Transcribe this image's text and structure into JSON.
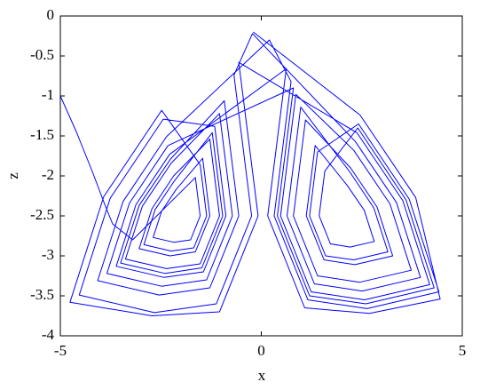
{
  "chart_data": {
    "type": "line",
    "xlabel": "x",
    "ylabel": "z",
    "color": "#0000ff",
    "xlim": [
      -5,
      5
    ],
    "xticks": [
      -5,
      0,
      5
    ],
    "ylim": [
      -4,
      0
    ],
    "yticks": [
      0,
      -0.5,
      -1,
      -1.5,
      -2,
      -2.5,
      -3,
      -3.5,
      -4
    ],
    "x": [
      -5,
      -4.6,
      -4.2,
      -3.9,
      -3.7,
      -3.2,
      -1.64,
      -1.52,
      -1.76,
      -2.18,
      -2.69,
      -2.48,
      -2.12,
      -1.46,
      -1.28,
      -1.64,
      -2.27,
      -3.04,
      -2.72,
      -2.18,
      -1.28,
      -1.04,
      -1.52,
      -2.36,
      -3.38,
      -2.96,
      -2.24,
      -1.04,
      -0.72,
      -1.36,
      -2.48,
      -3.84,
      -3.28,
      -2.32,
      0.8,
      0.4,
      1.2,
      2.6,
      4.3,
      3.6,
      2.4,
      1.58,
      1.44,
      1.72,
      2.21,
      2.81,
      2.56,
      2.14,
      1.34,
      1.12,
      1.56,
      2.33,
      3.27,
      2.88,
      2.22,
      1.1,
      0.8,
      1.4,
      2.45,
      3.73,
      3.2,
      2.3,
      0.86,
      0.48,
      1.24,
      2.57,
      4.19,
      3.52,
      2.38,
      -0.56,
      -0.08,
      -1.04,
      -2.72,
      -4.76,
      -3.92,
      -2.48,
      -1.52,
      -1.36,
      -1.68,
      -2.24,
      -2.92,
      -2.64,
      -2.16,
      -1.22,
      -0.96,
      -1.48,
      -2.39,
      -3.5,
      -3.04,
      -2.26,
      -0.92,
      -0.56,
      -1.28,
      -2.54,
      -4.07,
      -3.44,
      -2.36,
      0.2,
      0.74,
      0.32,
      1.16,
      2.63,
      4.42,
      3.68,
      2.42,
      1.4,
      1.2,
      1.6,
      2.3,
      3.15,
      2.8,
      2.2,
      0.98,
      0.64,
      1.32,
      2.51,
      3.96,
      3.36,
      2.34,
      -0.22,
      -0.68,
      -0.24,
      -1.12,
      -2.66,
      -4.53,
      -3.76,
      -2.44,
      -1.16,
      -0.88,
      -1.44,
      -2.42,
      -3.61,
      -3.12,
      -2.28,
      0.62,
      0.16,
      1.08,
      2.69,
      4.45,
      3.84,
      2.46,
      -0.2
    ],
    "values": [
      -1,
      -1.45,
      -1.95,
      -2.35,
      -2.6,
      -2.8,
      -2.02,
      -2.5,
      -2.8,
      -2.83,
      -2.77,
      -2.44,
      -2.17,
      -1.78,
      -2.5,
      -2.95,
      -3.0,
      -2.91,
      -2.41,
      -2.0,
      -1.54,
      -2.5,
      -3.1,
      -3.16,
      -3.04,
      -2.38,
      -1.84,
      -1.22,
      -2.5,
      -3.3,
      -3.38,
      -3.22,
      -2.34,
      -1.62,
      -0.9,
      -2.5,
      -3.5,
      -3.6,
      -3.4,
      -2.3,
      -1.4,
      -1.94,
      -2.5,
      -2.85,
      -2.89,
      -2.82,
      -2.43,
      -2.12,
      -1.62,
      -2.5,
      -3.05,
      -3.11,
      -3.0,
      -2.39,
      -1.9,
      -1.3,
      -2.5,
      -3.25,
      -3.33,
      -3.18,
      -2.35,
      -1.68,
      -0.98,
      -2.5,
      -3.45,
      -3.55,
      -3.36,
      -2.31,
      -1.46,
      -0.58,
      -2.5,
      -3.7,
      -3.75,
      -3.58,
      -2.26,
      -1.18,
      -1.86,
      -2.5,
      -2.9,
      -2.94,
      -2.86,
      -2.42,
      -2.06,
      -1.46,
      -2.5,
      -3.15,
      -3.22,
      -3.09,
      -2.37,
      -1.79,
      -1.06,
      -2.5,
      -3.4,
      -3.49,
      -3.31,
      -2.32,
      -1.51,
      -0.3,
      -0.82,
      -2.5,
      -3.55,
      -3.66,
      -3.45,
      -2.29,
      -1.35,
      -1.7,
      -2.5,
      -3.0,
      -3.05,
      -2.95,
      -2.4,
      -1.95,
      -1.14,
      -2.5,
      -3.35,
      -3.44,
      -3.27,
      -2.33,
      -1.57,
      -0.22,
      -0.74,
      -2.5,
      -3.6,
      -3.71,
      -3.49,
      -2.28,
      -1.29,
      -1.38,
      -2.5,
      -3.2,
      -3.27,
      -3.13,
      -2.36,
      -1.73,
      -0.66,
      -2.5,
      -3.65,
      -3.72,
      -3.54,
      -2.27,
      -1.24,
      -0.2
    ]
  }
}
